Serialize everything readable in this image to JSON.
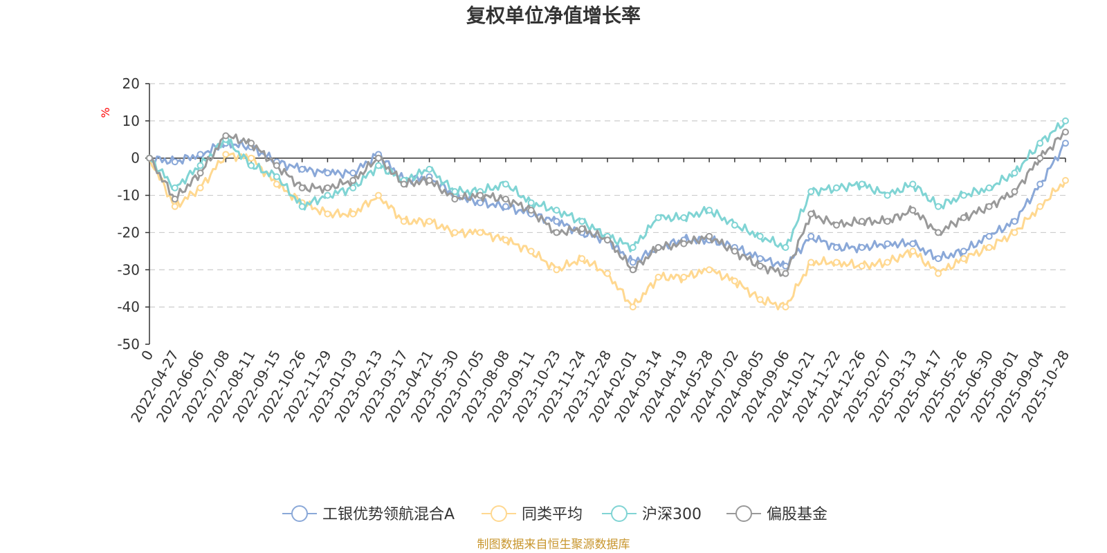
{
  "chart_data": {
    "type": "line",
    "title": "复权单位净值增长率",
    "ylabel": "%",
    "xlabel": "",
    "ylim": [
      -50,
      20
    ],
    "yticks": [
      20,
      10,
      0,
      -10,
      -20,
      -30,
      -40,
      -50
    ],
    "categories": [
      "0",
      "2022-04-27",
      "2022-06-06",
      "2022-07-08",
      "2022-08-11",
      "2022-09-15",
      "2022-10-26",
      "2022-11-29",
      "2023-01-03",
      "2023-02-13",
      "2023-03-17",
      "2023-04-21",
      "2023-05-30",
      "2023-07-05",
      "2023-08-08",
      "2023-09-11",
      "2023-10-23",
      "2023-11-24",
      "2023-12-28",
      "2024-02-01",
      "2024-03-14",
      "2024-04-19",
      "2024-05-28",
      "2024-07-02",
      "2024-08-05",
      "2024-09-06",
      "2024-10-21",
      "2024-11-22",
      "2024-12-26",
      "2025-02-07",
      "2025-03-13",
      "2025-04-17",
      "2025-05-26",
      "2025-06-30",
      "2025-08-01",
      "2025-09-04",
      "2025-10-28"
    ],
    "series": [
      {
        "name": "工银优势领航混合A",
        "color": "#8aa8d8",
        "values": [
          0,
          -1,
          1,
          4,
          3,
          -1,
          -3,
          -4,
          -4,
          1,
          -6,
          -5,
          -10,
          -12,
          -13,
          -15,
          -17,
          -20,
          -22,
          -28,
          -24,
          -22,
          -22,
          -24,
          -27,
          -29,
          -21,
          -24,
          -24,
          -23,
          -23,
          -27,
          -25,
          -21,
          -17,
          -7,
          4
        ]
      },
      {
        "name": "同类平均",
        "color": "#ffd890",
        "values": [
          0,
          -13,
          -8,
          1,
          0,
          -7,
          -12,
          -15,
          -15,
          -10,
          -17,
          -17,
          -20,
          -20,
          -22,
          -25,
          -30,
          -27,
          -31,
          -40,
          -32,
          -32,
          -30,
          -33,
          -38,
          -40,
          -28,
          -28,
          -29,
          -28,
          -25,
          -31,
          -27,
          -24,
          -20,
          -13,
          -6
        ]
      },
      {
        "name": "沪深300",
        "color": "#80d4d4",
        "values": [
          0,
          -8,
          -2,
          5,
          -2,
          -5,
          -13,
          -10,
          -8,
          -2,
          -6,
          -3,
          -9,
          -9,
          -7,
          -12,
          -14,
          -17,
          -21,
          -24,
          -16,
          -16,
          -14,
          -18,
          -21,
          -24,
          -9,
          -8,
          -7,
          -10,
          -7,
          -13,
          -10,
          -8,
          -4,
          4,
          10
        ]
      },
      {
        "name": "偏股基金",
        "color": "#999999",
        "values": [
          0,
          -11,
          -4,
          6,
          4,
          -2,
          -8,
          -8,
          -6,
          0,
          -7,
          -6,
          -11,
          -10,
          -11,
          -14,
          -20,
          -19,
          -22,
          -30,
          -24,
          -23,
          -21,
          -25,
          -29,
          -31,
          -15,
          -18,
          -17,
          -17,
          -14,
          -20,
          -16,
          -13,
          -9,
          0,
          7
        ]
      }
    ]
  },
  "source_text": "制图数据来自恒生聚源数据库"
}
